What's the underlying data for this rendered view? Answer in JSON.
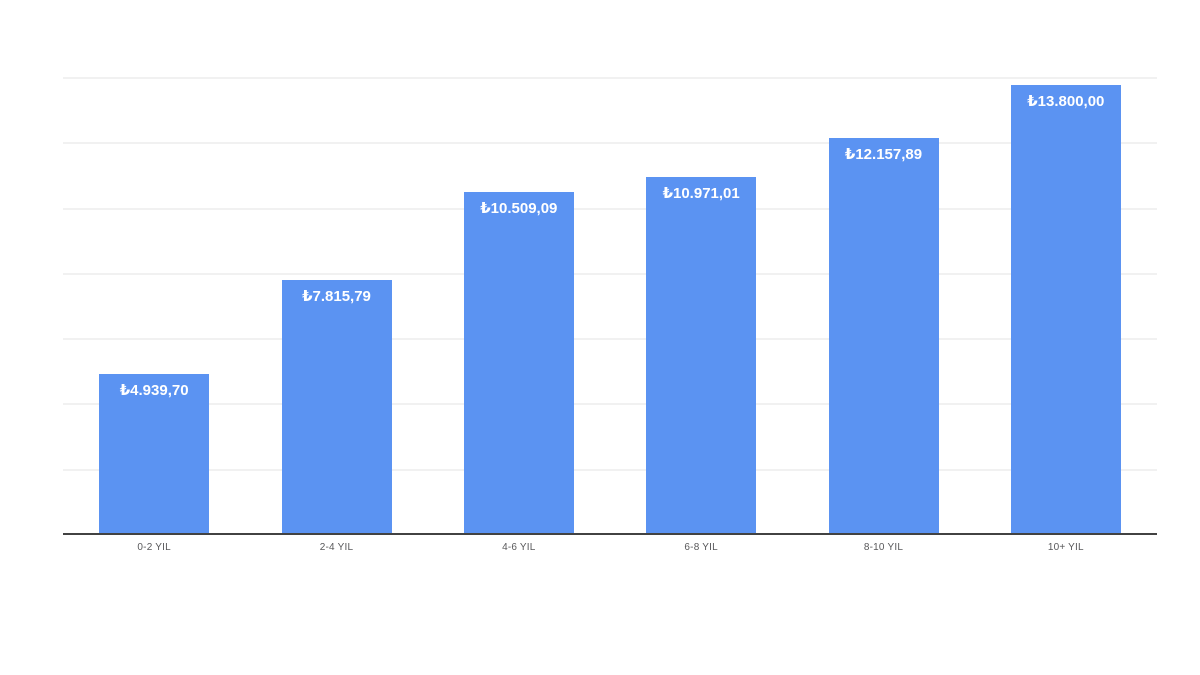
{
  "chart_data": {
    "type": "bar",
    "title": "",
    "xlabel": "",
    "ylabel": "",
    "categories": [
      "0-2 YIL",
      "2-4 YIL",
      "4-6 YIL",
      "6-8 YIL",
      "8-10 YIL",
      "10+ YIL"
    ],
    "values": [
      4939.7,
      7815.79,
      10509.09,
      10971.01,
      12157.89,
      13800.0
    ],
    "value_labels": [
      "₺4.939,70",
      "₺7.815,79",
      "₺10.509,09",
      "₺10.971,01",
      "₺12.157,89",
      "₺13.800,00"
    ],
    "ylim": [
      0,
      14000
    ],
    "gridline_step": 2000,
    "grid": true,
    "legend_position": "none",
    "colors": {
      "bar": "#5b93f2",
      "value_label": "#ffffff",
      "gridline": "#f1f1f1",
      "baseline": "#424242",
      "axis_label": "#58585a",
      "background": "#ffffff"
    }
  }
}
